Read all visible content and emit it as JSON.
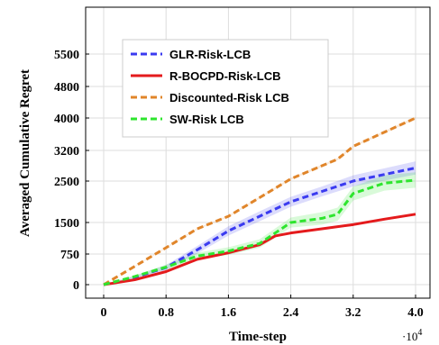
{
  "chart_data": {
    "type": "line",
    "xlabel": "Time-step",
    "ylabel": "Averaged Cumulative Regret",
    "x_multiplier": "·10",
    "x_multiplier_exp": "4",
    "xlim": [
      0,
      4.0
    ],
    "ylim": [
      0,
      5600
    ],
    "xticks": [
      0,
      0.8,
      1.6,
      2.4,
      3.2,
      4.0
    ],
    "xtick_labels": [
      "0",
      "0.8",
      "1.6",
      "2.4",
      "3.2",
      "4.0"
    ],
    "yticks": [
      0,
      750,
      1500,
      2500,
      3200,
      4000,
      4800,
      5500
    ],
    "ytick_labels": [
      "0",
      "750",
      "1500",
      "2500",
      "3200",
      "4000",
      "4800",
      "5500"
    ],
    "ytick_pixel_note": "non-uniform axis",
    "grid": true,
    "legend_position": "upper-left",
    "series": [
      {
        "name": "GLR-Risk-LCB",
        "color": "#3b3bf0",
        "style": "dashed",
        "x": [
          0,
          0.4,
          0.8,
          1.2,
          1.6,
          2.0,
          2.4,
          2.8,
          3.2,
          3.6,
          4.0
        ],
        "y": [
          0,
          180,
          420,
          850,
          1300,
          1650,
          2000,
          2250,
          2500,
          2650,
          2800
        ],
        "band": [
          0,
          30,
          60,
          90,
          110,
          120,
          120,
          120,
          130,
          140,
          150
        ]
      },
      {
        "name": "R-BOCPD-Risk-LCB",
        "color": "#e41a1c",
        "style": "solid",
        "x": [
          0,
          0.4,
          0.8,
          1.2,
          1.6,
          2.0,
          2.2,
          2.4,
          2.8,
          3.2,
          3.6,
          4.0
        ],
        "y": [
          0,
          120,
          320,
          620,
          780,
          970,
          1180,
          1250,
          1350,
          1450,
          1580,
          1700
        ],
        "band": [
          0,
          10,
          15,
          20,
          25,
          25,
          25,
          25,
          25,
          30,
          30,
          30
        ]
      },
      {
        "name": "Discounted-Risk LCB",
        "color": "#e0852a",
        "style": "dashed",
        "x": [
          0,
          0.4,
          0.8,
          1.2,
          1.6,
          2.0,
          2.4,
          2.8,
          3.0,
          3.2,
          3.6,
          4.0
        ],
        "y": [
          0,
          450,
          900,
          1350,
          1650,
          2100,
          2550,
          2850,
          3000,
          3300,
          3650,
          4000
        ],
        "band": [
          0,
          10,
          15,
          20,
          20,
          20,
          25,
          25,
          25,
          25,
          30,
          30
        ]
      },
      {
        "name": "SW-Risk LCB",
        "color": "#2ee52e",
        "style": "dashed",
        "x": [
          0,
          0.4,
          0.8,
          1.2,
          1.6,
          2.0,
          2.4,
          2.8,
          3.0,
          3.2,
          3.6,
          4.0
        ],
        "y": [
          0,
          200,
          430,
          700,
          820,
          1000,
          1500,
          1600,
          1700,
          2200,
          2450,
          2520
        ],
        "band": [
          0,
          30,
          60,
          80,
          90,
          100,
          120,
          150,
          160,
          170,
          180,
          180
        ]
      }
    ]
  }
}
